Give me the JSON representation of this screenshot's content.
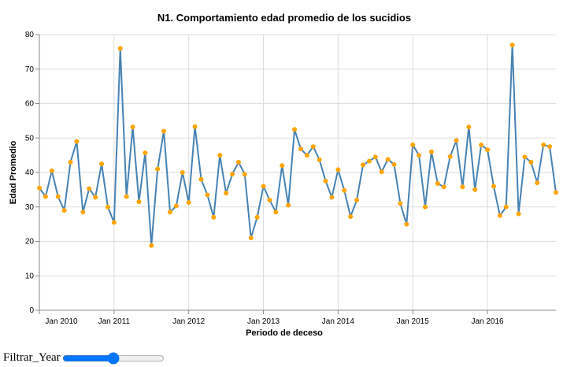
{
  "chart_data": {
    "type": "line",
    "title": "N1. Comportamiento edad promedio de los sucidios",
    "x_label": "Periodo de deceso",
    "y_label": "Edad Promedio",
    "x": [
      "2010-01",
      "2010-02",
      "2010-03",
      "2010-04",
      "2010-05",
      "2010-06",
      "2010-07",
      "2010-08",
      "2010-09",
      "2010-10",
      "2010-11",
      "2010-12",
      "2011-01",
      "2011-02",
      "2011-03",
      "2011-04",
      "2011-05",
      "2011-06",
      "2011-07",
      "2011-08",
      "2011-09",
      "2011-10",
      "2011-11",
      "2011-12",
      "2012-01",
      "2012-02",
      "2012-03",
      "2012-04",
      "2012-05",
      "2012-06",
      "2012-07",
      "2012-08",
      "2012-09",
      "2012-10",
      "2012-11",
      "2012-12",
      "2013-01",
      "2013-02",
      "2013-03",
      "2013-04",
      "2013-05",
      "2013-06",
      "2013-07",
      "2013-08",
      "2013-09",
      "2013-10",
      "2013-11",
      "2013-12",
      "2014-01",
      "2014-02",
      "2014-03",
      "2014-04",
      "2014-05",
      "2014-06",
      "2014-07",
      "2014-08",
      "2014-09",
      "2014-10",
      "2014-11",
      "2014-12",
      "2015-01",
      "2015-02",
      "2015-03",
      "2015-04",
      "2015-05",
      "2015-06",
      "2015-07",
      "2015-08",
      "2015-09",
      "2015-10",
      "2015-11",
      "2015-12",
      "2016-01",
      "2016-02",
      "2016-03",
      "2016-04",
      "2016-05",
      "2016-06",
      "2016-07",
      "2016-08",
      "2016-09",
      "2016-10",
      "2016-11",
      "2016-12"
    ],
    "series": [
      {
        "color": "#4682b4",
        "point_color": "#ffa500",
        "values": [
          35.5,
          33,
          40.5,
          33,
          29,
          43,
          49,
          28.5,
          35.3,
          32.8,
          42.5,
          30,
          25.5,
          76,
          33,
          53.2,
          31.5,
          45.7,
          18.8,
          41,
          52,
          28.5,
          30.3,
          40,
          31.3,
          53.3,
          38,
          33.5,
          27,
          45,
          34,
          39.5,
          43,
          39.5,
          21,
          27,
          36,
          32,
          28.5,
          42,
          30.5,
          52.5,
          46.8,
          45,
          47.5,
          43.7,
          37.5,
          32.8,
          40.8,
          34.8,
          27.2,
          32,
          42.2,
          43.3,
          44.5,
          40.2,
          43.8,
          42.3,
          31,
          25,
          48,
          45,
          30,
          46,
          36.8,
          35.8,
          44.6,
          49.3,
          35.8,
          53.2,
          35,
          48,
          46.6,
          36,
          27.5,
          30,
          77,
          28,
          44.5,
          43,
          37,
          48,
          47.5,
          34.2
        ]
      }
    ],
    "xlim": [
      "2010-01",
      "2016-12"
    ],
    "xticks": [
      {
        "value": "2010-01",
        "label": "Jan 2010"
      },
      {
        "value": "2011-01",
        "label": "Jan 2011"
      },
      {
        "value": "2012-01",
        "label": "Jan 2012"
      },
      {
        "value": "2013-01",
        "label": "Jan 2013"
      },
      {
        "value": "2014-01",
        "label": "Jan 2014"
      },
      {
        "value": "2015-01",
        "label": "Jan 2015"
      },
      {
        "value": "2016-01",
        "label": "Jan 2016"
      }
    ],
    "ylim": [
      0,
      80
    ],
    "yticks": [
      0,
      10,
      20,
      30,
      40,
      50,
      60,
      70,
      80
    ],
    "grid": true,
    "slider_label": "Filtrar_Year"
  }
}
